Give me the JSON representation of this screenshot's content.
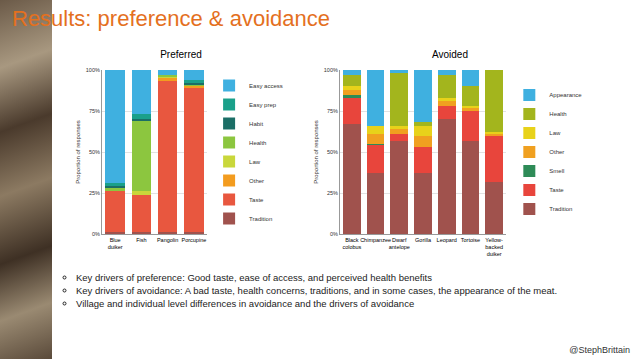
{
  "slide": {
    "title": "Results: preference & avoidance",
    "bullets": [
      "Key drivers of preference: Good taste, ease of access, and perceived health benefits",
      "Key drivers of avoidance: A bad taste, health concerns, traditions, and in some cases, the appearance of the meat.",
      "Village and individual level differences in avoidance and the drivers of avoidance"
    ],
    "footer": "@StephBrittain"
  },
  "chart_data": [
    {
      "type": "bar",
      "title": "Preferred",
      "stacked": true,
      "grid": true,
      "legend": "right",
      "categories": [
        "Blue duiker",
        "Fish",
        "Pangolin",
        "Porcupine"
      ],
      "ylabel": "Proportion of responses",
      "ylim": [
        0,
        100
      ],
      "yticks": [
        {
          "value": 0,
          "label": "0%"
        },
        {
          "value": 25,
          "label": "25%"
        },
        {
          "value": 50,
          "label": "50%"
        },
        {
          "value": 75,
          "label": "75%"
        },
        {
          "value": 100,
          "label": "100%"
        }
      ],
      "series": [
        {
          "name": "Easy access",
          "color": "#3fb0e0",
          "values": [
            69,
            27,
            3,
            6
          ]
        },
        {
          "name": "Easy prep",
          "color": "#1aa08a",
          "values": [
            2,
            3,
            0,
            2
          ]
        },
        {
          "name": "Habit",
          "color": "#1b6e66",
          "values": [
            1,
            1,
            0,
            1
          ]
        },
        {
          "name": "Health",
          "color": "#8cc63f",
          "values": [
            2,
            43,
            1,
            1
          ]
        },
        {
          "name": "Law",
          "color": "#c9d73b",
          "values": [
            0,
            2,
            1,
            0
          ]
        },
        {
          "name": "Other",
          "color": "#f39c1f",
          "values": [
            0,
            0,
            2,
            1
          ]
        },
        {
          "name": "Taste",
          "color": "#e8573f",
          "values": [
            25,
            23,
            92,
            88
          ]
        },
        {
          "name": "Tradition",
          "color": "#a0524d",
          "values": [
            1,
            1,
            1,
            1
          ]
        }
      ]
    },
    {
      "type": "bar",
      "title": "Avoided",
      "stacked": true,
      "grid": true,
      "legend": "right",
      "categories": [
        "Black colobus",
        "Chimpanzee",
        "Dwarf antelope",
        "Gorilla",
        "Leopard",
        "Tortoise",
        "Yellow-backed duiker"
      ],
      "ylabel": "Proportion of responses",
      "ylim": [
        0,
        100
      ],
      "yticks": [
        {
          "value": 0,
          "label": "0%"
        },
        {
          "value": 25,
          "label": "25%"
        },
        {
          "value": 50,
          "label": "50%"
        },
        {
          "value": 75,
          "label": "75%"
        },
        {
          "value": 100,
          "label": "100%"
        }
      ],
      "series": [
        {
          "name": "Appearance",
          "color": "#3fb0e0",
          "values": [
            3,
            34,
            2,
            32,
            3,
            10,
            0
          ]
        },
        {
          "name": "Health",
          "color": "#a3b51d",
          "values": [
            7,
            0,
            32,
            2,
            14,
            12,
            38
          ]
        },
        {
          "name": "Law",
          "color": "#e8d21a",
          "values": [
            2,
            5,
            2,
            6,
            2,
            1,
            1
          ]
        },
        {
          "name": "Other",
          "color": "#f0a020",
          "values": [
            3,
            6,
            3,
            7,
            3,
            2,
            1
          ]
        },
        {
          "name": "Smell",
          "color": "#2e8b57",
          "values": [
            2,
            1,
            0,
            0,
            0,
            0,
            0
          ]
        },
        {
          "name": "Taste",
          "color": "#e8453c",
          "values": [
            16,
            17,
            4,
            16,
            8,
            18,
            28
          ]
        },
        {
          "name": "Tradition",
          "color": "#a0524d",
          "values": [
            67,
            37,
            57,
            37,
            70,
            57,
            32
          ]
        }
      ]
    }
  ]
}
